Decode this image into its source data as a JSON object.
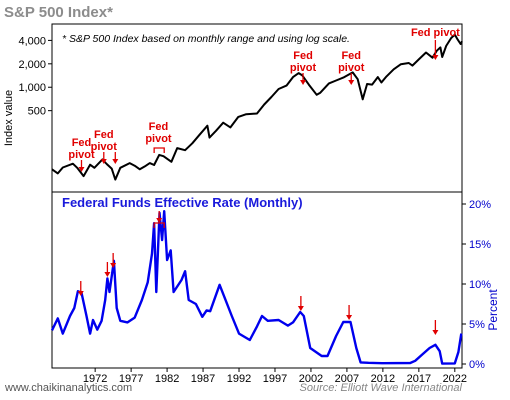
{
  "title": "S&P 500 Index*",
  "footnote": "* S&P 500 Index based on monthly range and using log scale.",
  "website": "www.chaikinanalytics.com",
  "source": "Source: Elliott Wave International",
  "colors": {
    "sp500": "#000000",
    "fed": "#0000ee",
    "pivot": "#e00000",
    "title": "#8c8c8c"
  },
  "chart_data": [
    {
      "type": "line",
      "title": "",
      "ylabel": "Index value",
      "scale": "log",
      "yticks": [
        {
          "label": "4,000",
          "value": 4000
        },
        {
          "label": "2,000",
          "value": 2000
        },
        {
          "label": "1,000",
          "value": 1000
        },
        {
          "label": "500",
          "value": 500
        }
      ],
      "ylim": [
        45,
        6500
      ],
      "xlim": [
        1966,
        2023
      ],
      "series": [
        {
          "values": [
            [
              1966,
              88
            ],
            [
              1966.8,
              78
            ],
            [
              1967.5,
              93
            ],
            [
              1968.9,
              104
            ],
            [
              1969.5,
              92
            ],
            [
              1970.4,
              72
            ],
            [
              1971.3,
              101
            ],
            [
              1971.9,
              92
            ],
            [
              1973.0,
              118
            ],
            [
              1973.6,
              103
            ],
            [
              1974.3,
              90
            ],
            [
              1974.8,
              65
            ],
            [
              1975.5,
              92
            ],
            [
              1976.8,
              106
            ],
            [
              1977.5,
              98
            ],
            [
              1978.2,
              88
            ],
            [
              1978.9,
              96
            ],
            [
              1979.6,
              106
            ],
            [
              1980.2,
              100
            ],
            [
              1980.9,
              135
            ],
            [
              1981.5,
              130
            ],
            [
              1982.6,
              110
            ],
            [
              1983.4,
              165
            ],
            [
              1984.5,
              155
            ],
            [
              1985.5,
              190
            ],
            [
              1986.5,
              245
            ],
            [
              1987.6,
              320
            ],
            [
              1987.9,
              225
            ],
            [
              1988.8,
              275
            ],
            [
              1989.8,
              350
            ],
            [
              1990.8,
              305
            ],
            [
              1991.9,
              415
            ],
            [
              1993.0,
              450
            ],
            [
              1994.5,
              460
            ],
            [
              1995.5,
              600
            ],
            [
              1996.5,
              750
            ],
            [
              1997.5,
              950
            ],
            [
              1998.6,
              1050
            ],
            [
              1999.5,
              1350
            ],
            [
              2000.3,
              1520
            ],
            [
              2000.8,
              1420
            ],
            [
              2001.7,
              1080
            ],
            [
              2002.8,
              800
            ],
            [
              2003.3,
              850
            ],
            [
              2004.5,
              1120
            ],
            [
              2005.5,
              1220
            ],
            [
              2006.5,
              1330
            ],
            [
              2007.8,
              1550
            ],
            [
              2008.5,
              1270
            ],
            [
              2009.2,
              700
            ],
            [
              2009.8,
              1100
            ],
            [
              2010.5,
              1080
            ],
            [
              2011.3,
              1350
            ],
            [
              2011.8,
              1150
            ],
            [
              2012.5,
              1380
            ],
            [
              2013.5,
              1700
            ],
            [
              2014.5,
              1980
            ],
            [
              2015.6,
              2050
            ],
            [
              2016.1,
              1900
            ],
            [
              2017.0,
              2280
            ],
            [
              2018.0,
              2800
            ],
            [
              2018.9,
              2400
            ],
            [
              2019.5,
              2950
            ],
            [
              2020.0,
              3250
            ],
            [
              2020.25,
              2450
            ],
            [
              2020.8,
              3400
            ],
            [
              2021.5,
              4300
            ],
            [
              2022.0,
              4750
            ],
            [
              2022.4,
              4100
            ],
            [
              2022.8,
              3600
            ],
            [
              2023.0,
              3900
            ]
          ]
        }
      ],
      "annotations": [
        {
          "text": [
            "Fed",
            "pivot"
          ],
          "x": 1970.1
        },
        {
          "text": [
            "Fed",
            "pivot"
          ],
          "x": 1973.2,
          "second_arrow_x": 1974.8
        },
        {
          "text": [
            "Fed",
            "pivot"
          ],
          "x": 1980.8,
          "bracket": [
            1980.2,
            1981.6
          ]
        },
        {
          "text": [
            "Fed",
            "pivot"
          ],
          "x": 2000.9
        },
        {
          "text": [
            "Fed",
            "pivot"
          ],
          "x": 2007.6
        },
        {
          "text": [
            "Fed pivot"
          ],
          "x": 2019.3
        }
      ]
    },
    {
      "type": "line",
      "title": "Federal Funds Effective Rate (Monthly)",
      "ylabel": "Percent",
      "yticks": [
        {
          "label": "20%",
          "value": 20
        },
        {
          "label": "15%",
          "value": 15
        },
        {
          "label": "10%",
          "value": 10
        },
        {
          "label": "5%",
          "value": 5
        },
        {
          "label": "0%",
          "value": 0
        }
      ],
      "ylim": [
        -0.5,
        21.5
      ],
      "xlim": [
        1966,
        2023
      ],
      "xticks": [
        "1972",
        "1977",
        "1982",
        "1987",
        "1992",
        "1997",
        "2002",
        "2007",
        "2012",
        "2017",
        "2022"
      ],
      "xtick_values": [
        1972,
        1977,
        1982,
        1987,
        1992,
        1997,
        2002,
        2007,
        2012,
        2017,
        2022
      ],
      "series": [
        {
          "values": [
            [
              1966,
              4.2
            ],
            [
              1966.8,
              5.7
            ],
            [
              1967.5,
              3.8
            ],
            [
              1968.5,
              6.0
            ],
            [
              1969.1,
              7.0
            ],
            [
              1969.6,
              9.1
            ],
            [
              1970.1,
              8.9
            ],
            [
              1970.8,
              6.0
            ],
            [
              1971.3,
              3.8
            ],
            [
              1971.7,
              5.5
            ],
            [
              1972.3,
              4.3
            ],
            [
              1972.9,
              5.4
            ],
            [
              1973.4,
              8.0
            ],
            [
              1973.7,
              10.7
            ],
            [
              1974.0,
              9.0
            ],
            [
              1974.6,
              12.9
            ],
            [
              1975.0,
              7.0
            ],
            [
              1975.5,
              5.4
            ],
            [
              1976.5,
              5.2
            ],
            [
              1977.5,
              5.8
            ],
            [
              1978.5,
              8.0
            ],
            [
              1979.3,
              10.2
            ],
            [
              1979.9,
              13.8
            ],
            [
              1980.2,
              17.6
            ],
            [
              1980.5,
              9.0
            ],
            [
              1980.95,
              18.9
            ],
            [
              1981.3,
              15.5
            ],
            [
              1981.6,
              19.1
            ],
            [
              1982.0,
              13.0
            ],
            [
              1982.5,
              14.2
            ],
            [
              1982.9,
              9.0
            ],
            [
              1984.0,
              10.5
            ],
            [
              1984.5,
              11.6
            ],
            [
              1985.0,
              8.0
            ],
            [
              1986.0,
              7.5
            ],
            [
              1986.9,
              5.9
            ],
            [
              1987.5,
              6.7
            ],
            [
              1988.0,
              6.6
            ],
            [
              1989.3,
              9.9
            ],
            [
              1990.0,
              8.3
            ],
            [
              1991.0,
              6.0
            ],
            [
              1992.0,
              3.8
            ],
            [
              1993.5,
              3.0
            ],
            [
              1994.5,
              4.7
            ],
            [
              1995.2,
              6.0
            ],
            [
              1996.0,
              5.4
            ],
            [
              1997.5,
              5.5
            ],
            [
              1998.8,
              4.8
            ],
            [
              1999.5,
              5.2
            ],
            [
              2000.5,
              6.5
            ],
            [
              2001.0,
              6.0
            ],
            [
              2001.9,
              2.0
            ],
            [
              2003.5,
              1.0
            ],
            [
              2004.3,
              1.0
            ],
            [
              2005.5,
              3.5
            ],
            [
              2006.5,
              5.25
            ],
            [
              2007.5,
              5.25
            ],
            [
              2008.3,
              2.0
            ],
            [
              2008.9,
              0.2
            ],
            [
              2010.0,
              0.15
            ],
            [
              2012.0,
              0.1
            ],
            [
              2015.8,
              0.13
            ],
            [
              2016.5,
              0.4
            ],
            [
              2017.5,
              1.2
            ],
            [
              2018.5,
              2.0
            ],
            [
              2019.3,
              2.4
            ],
            [
              2019.9,
              1.6
            ],
            [
              2020.25,
              0.05
            ],
            [
              2022.0,
              0.08
            ],
            [
              2022.5,
              1.5
            ],
            [
              2022.9,
              3.8
            ]
          ]
        }
      ],
      "arrows_x": [
        1970.0,
        1973.7,
        1974.5,
        2000.6,
        2007.3,
        2019.3
      ],
      "bracket": [
        1980.2,
        1981.6
      ]
    }
  ]
}
